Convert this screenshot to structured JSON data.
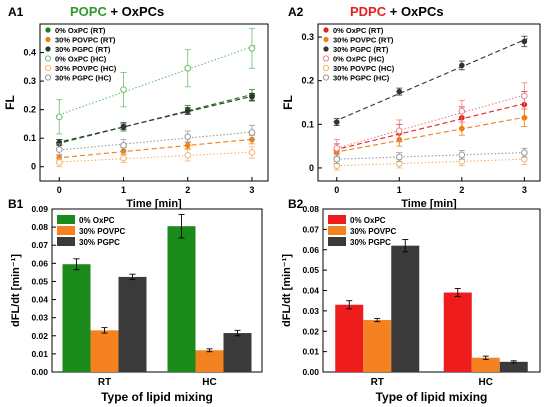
{
  "chart_data": [
    {
      "id": "A1",
      "type": "scatter",
      "panel_label": "A1",
      "title_parts": [
        {
          "text": "POPC",
          "color": "#2e9a2e"
        },
        {
          "text": " + OxPCs",
          "color": "#000000"
        }
      ],
      "xlabel": "Time [min]",
      "ylabel": "FL",
      "xlim": [
        -0.3,
        3.25
      ],
      "ylim": [
        -0.05,
        0.5
      ],
      "xticks": [
        0,
        1,
        2,
        3
      ],
      "yticks": [
        0.0,
        0.1,
        0.2,
        0.3,
        0.4
      ],
      "legend_position": "top-left",
      "x": [
        0,
        1,
        2,
        3
      ],
      "series": [
        {
          "name": "0% OxPC (RT)",
          "color": "#1e7a1e",
          "marker": "filled",
          "values": [
            0.08,
            0.14,
            0.2,
            0.25
          ],
          "err": [
            0.015,
            0.015,
            0.015,
            0.02
          ]
        },
        {
          "name": "30% POVPC (RT)",
          "color": "#f07d10",
          "marker": "filled",
          "values": [
            0.03,
            0.055,
            0.075,
            0.095
          ],
          "err": [
            0.012,
            0.012,
            0.012,
            0.015
          ]
        },
        {
          "name": "30% PGPC (RT)",
          "color": "#333333",
          "marker": "filled",
          "values": [
            0.085,
            0.14,
            0.195,
            0.245
          ],
          "err": [
            0.01,
            0.01,
            0.012,
            0.012
          ]
        },
        {
          "name": "0% OxPC (HC)",
          "color": "#6cbf6c",
          "marker": "open",
          "values": [
            0.175,
            0.27,
            0.345,
            0.415
          ],
          "err": [
            0.06,
            0.06,
            0.065,
            0.07
          ]
        },
        {
          "name": "30% POVPC (HC)",
          "color": "#f5b36b",
          "marker": "open",
          "values": [
            0.015,
            0.03,
            0.04,
            0.05
          ],
          "err": [
            0.015,
            0.015,
            0.02,
            0.02
          ]
        },
        {
          "name": "30% PGPC (HC)",
          "color": "#9a9a9a",
          "marker": "open",
          "values": [
            0.06,
            0.075,
            0.105,
            0.12
          ],
          "err": [
            0.02,
            0.02,
            0.02,
            0.025
          ]
        }
      ]
    },
    {
      "id": "A2",
      "type": "scatter",
      "panel_label": "A2",
      "title_parts": [
        {
          "text": "PDPC",
          "color": "#e41f1f"
        },
        {
          "text": " + OxPCs",
          "color": "#000000"
        }
      ],
      "xlabel": "Time [min]",
      "ylabel": "FL",
      "xlim": [
        -0.3,
        3.25
      ],
      "ylim": [
        -0.03,
        0.33
      ],
      "xticks": [
        0,
        1,
        2,
        3
      ],
      "yticks": [
        0.0,
        0.1,
        0.2,
        0.3
      ],
      "legend_position": "top-left",
      "x": [
        0,
        1,
        2,
        3
      ],
      "series": [
        {
          "name": "0% OxPC (RT)",
          "color": "#e41f1f",
          "marker": "filled",
          "values": [
            0.04,
            0.08,
            0.115,
            0.145
          ],
          "err": [
            0.015,
            0.02,
            0.025,
            0.03
          ]
        },
        {
          "name": "30% POVPC (RT)",
          "color": "#f07d10",
          "marker": "filled",
          "values": [
            0.035,
            0.065,
            0.09,
            0.115
          ],
          "err": [
            0.01,
            0.015,
            0.015,
            0.02
          ]
        },
        {
          "name": "30% PGPC (RT)",
          "color": "#333333",
          "marker": "filled",
          "values": [
            0.105,
            0.175,
            0.235,
            0.29
          ],
          "err": [
            0.008,
            0.008,
            0.01,
            0.012
          ]
        },
        {
          "name": "0% OxPC (HC)",
          "color": "#f08080",
          "marker": "open",
          "values": [
            0.045,
            0.085,
            0.13,
            0.165
          ],
          "err": [
            0.02,
            0.025,
            0.025,
            0.03
          ]
        },
        {
          "name": "30% POVPC (HC)",
          "color": "#f5b36b",
          "marker": "open",
          "values": [
            0.005,
            0.01,
            0.015,
            0.02
          ],
          "err": [
            0.01,
            0.01,
            0.01,
            0.012
          ]
        },
        {
          "name": "30% PGPC (HC)",
          "color": "#9a9a9a",
          "marker": "open",
          "values": [
            0.02,
            0.025,
            0.03,
            0.035
          ],
          "err": [
            0.01,
            0.01,
            0.01,
            0.01
          ]
        }
      ]
    },
    {
      "id": "B1",
      "type": "bar",
      "panel_label": "B1",
      "xlabel": "Type of lipid mixing",
      "ylabel": "dFL/dt [min⁻¹]",
      "ylim": [
        0,
        0.09
      ],
      "yticks": [
        0.0,
        0.01,
        0.02,
        0.03,
        0.04,
        0.05,
        0.06,
        0.07,
        0.08,
        0.09
      ],
      "yticklabels": [
        "0.00",
        "0.01",
        "0.02",
        "0.03",
        "0.04",
        "0.05",
        "0.06",
        "0.07",
        "0.08",
        "0.09"
      ],
      "legend_position": "top-left",
      "categories": [
        "RT",
        "HC"
      ],
      "series": [
        {
          "name": "0% OxPC",
          "color": "#1a8a1a",
          "values": [
            0.0595,
            0.0805
          ],
          "err": [
            0.003,
            0.0065
          ]
        },
        {
          "name": "30% POVPC",
          "color": "#f58220",
          "values": [
            0.023,
            0.012
          ],
          "err": [
            0.0015,
            0.0008
          ]
        },
        {
          "name": "30% PGPC",
          "color": "#3a3a3a",
          "values": [
            0.0525,
            0.0215
          ],
          "err": [
            0.0015,
            0.0015
          ]
        }
      ]
    },
    {
      "id": "B2",
      "type": "bar",
      "panel_label": "B2",
      "xlabel": "Type of lipid mixing",
      "ylabel": "dFL/dt [min⁻¹]",
      "ylim": [
        0,
        0.08
      ],
      "yticks": [
        0.0,
        0.01,
        0.02,
        0.03,
        0.04,
        0.05,
        0.06,
        0.07,
        0.08
      ],
      "yticklabels": [
        "0.00",
        "0.01",
        "0.02",
        "0.03",
        "0.04",
        "0.05",
        "0.06",
        "0.07",
        "0.08"
      ],
      "legend_position": "top-left",
      "categories": [
        "RT",
        "HC"
      ],
      "series": [
        {
          "name": "0% OxPC",
          "color": "#ee1c1c",
          "values": [
            0.033,
            0.039
          ],
          "err": [
            0.002,
            0.002
          ]
        },
        {
          "name": "30% POVPC",
          "color": "#f58220",
          "values": [
            0.0255,
            0.007
          ],
          "err": [
            0.0008,
            0.0008
          ]
        },
        {
          "name": "30% PGPC",
          "color": "#3a3a3a",
          "values": [
            0.062,
            0.005
          ],
          "err": [
            0.003,
            0.0005
          ]
        }
      ]
    }
  ]
}
